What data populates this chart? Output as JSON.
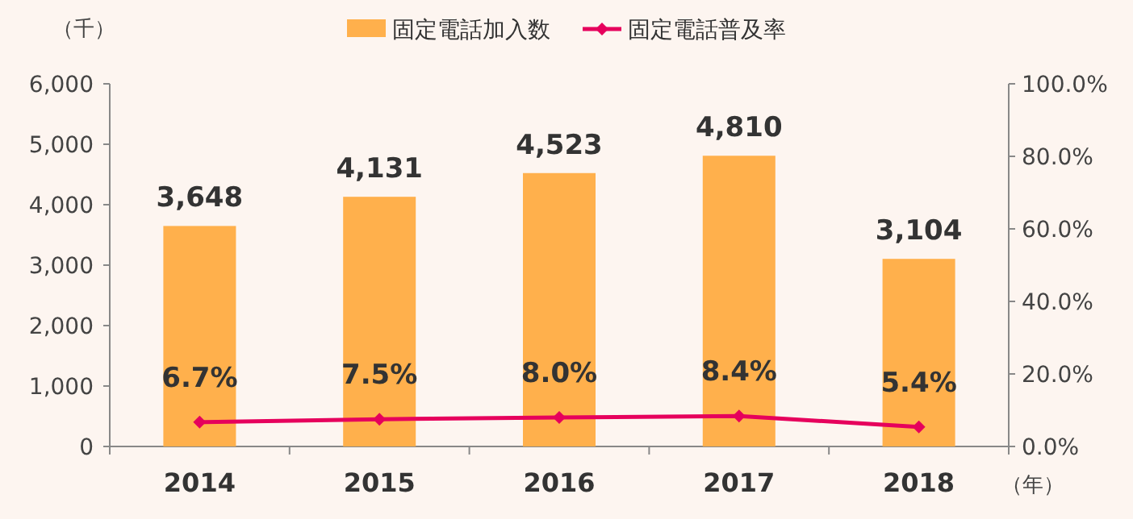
{
  "chart_data": {
    "type": "bar",
    "ylabel": "（千）",
    "xlabel": "（年）",
    "categories": [
      "2014",
      "2015",
      "2016",
      "2017",
      "2018"
    ],
    "series": [
      {
        "name": "固定電話加入数",
        "color": "#ffb04c",
        "values": [
          3648,
          4131,
          4523,
          4810,
          3104
        ],
        "value_labels": [
          "3,648",
          "4,131",
          "4,523",
          "4,810",
          "3,104"
        ]
      },
      {
        "name": "固定電話普及率",
        "type": "line",
        "axis": "y2",
        "color": "#e6005c",
        "marker": "diamond",
        "values": [
          6.7,
          7.5,
          8.0,
          8.4,
          5.4
        ],
        "value_labels": [
          "6.7%",
          "7.5%",
          "8.0%",
          "8.4%",
          "5.4%"
        ]
      }
    ],
    "ylim": [
      0,
      6000
    ],
    "yticks": [
      0,
      {
        "value": 1000,
        "label": "1,000"
      },
      {
        "value": 2000,
        "label": "2,000"
      },
      {
        "value": 3000,
        "label": "3,000"
      },
      {
        "value": 4000,
        "label": "4,000"
      },
      {
        "value": 5000,
        "label": "5,000"
      },
      {
        "value": 6000,
        "label": "6,000"
      }
    ],
    "y2lim": [
      0,
      100
    ],
    "y2ticks": [
      {
        "value": 0,
        "label": "0.0%"
      },
      {
        "value": 20,
        "label": "20.0%"
      },
      {
        "value": 40,
        "label": "40.0%"
      },
      {
        "value": 60,
        "label": "60.0%"
      },
      {
        "value": 80,
        "label": "80.0%"
      },
      {
        "value": 100,
        "label": "100.0%"
      }
    ],
    "legend": "top",
    "grid": false
  }
}
